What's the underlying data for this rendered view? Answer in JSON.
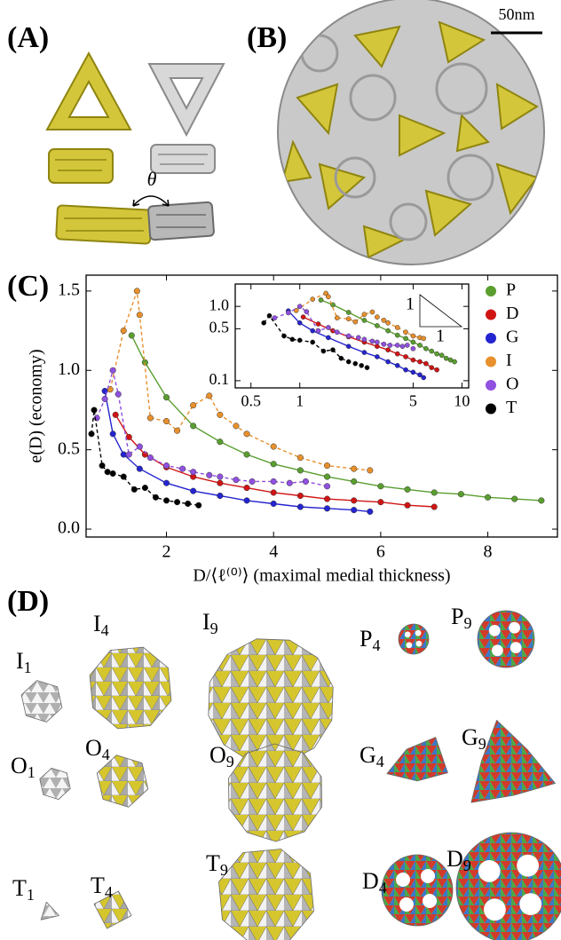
{
  "panel_labels": [
    "(A)",
    "(B)",
    "(C)",
    "(D)"
  ],
  "scale_bar": "50nm",
  "angle_label": "θ",
  "chart_data": [
    {
      "type": "line",
      "xlabel": "D/⟨ℓ⁽⁰⁾⟩ (maximal medial thickness)",
      "ylabel": "e(D) (economy)",
      "xlim": [
        0.5,
        9.3
      ],
      "ylim": [
        -0.05,
        1.6
      ],
      "xticks": [
        2,
        4,
        6,
        8
      ],
      "yticks": [
        {
          "value": 0,
          "label": "0.0"
        },
        0.5,
        {
          "value": 1,
          "label": "1.0"
        },
        1.5
      ],
      "grid": false,
      "legend": "upper right",
      "series": [
        {
          "name": "P",
          "color": "#5a9e2f",
          "linestyle": "solid",
          "x": [
            1.35,
            1.6,
            2,
            2.5,
            3,
            3.5,
            4,
            4.5,
            5,
            5.5,
            6,
            6.5,
            7,
            7.5,
            8,
            8.5,
            9
          ],
          "values": [
            1.22,
            1.05,
            0.83,
            0.65,
            0.55,
            0.47,
            0.41,
            0.37,
            0.33,
            0.3,
            0.27,
            0.25,
            0.23,
            0.22,
            0.2,
            0.19,
            0.18
          ]
        },
        {
          "name": "D",
          "color": "#d01414",
          "linestyle": "solid",
          "x": [
            1.05,
            1.3,
            1.6,
            2,
            2.5,
            3,
            3.5,
            4,
            4.5,
            5,
            5.5,
            6,
            6.5,
            7
          ],
          "values": [
            0.72,
            0.58,
            0.47,
            0.39,
            0.33,
            0.29,
            0.26,
            0.23,
            0.21,
            0.19,
            0.18,
            0.17,
            0.15,
            0.14
          ]
        },
        {
          "name": "G",
          "color": "#2424d0",
          "linestyle": "solid",
          "x": [
            0.85,
            1.0,
            1.2,
            1.5,
            2,
            2.5,
            3,
            3.5,
            4,
            4.5,
            5,
            5.5,
            5.8
          ],
          "values": [
            0.87,
            0.6,
            0.47,
            0.38,
            0.29,
            0.24,
            0.21,
            0.18,
            0.16,
            0.14,
            0.13,
            0.12,
            0.11
          ]
        },
        {
          "name": "I",
          "color": "#e8902c",
          "linestyle": "dashed",
          "x": [
            0.95,
            1.2,
            1.45,
            1.5,
            1.7,
            2,
            2.2,
            2.5,
            2.8,
            3,
            3.3,
            3.5,
            4,
            4.5,
            5,
            5.5,
            5.8
          ],
          "values": [
            0.88,
            1.25,
            1.5,
            1.35,
            0.7,
            0.68,
            0.62,
            0.78,
            0.84,
            0.72,
            0.65,
            0.6,
            0.52,
            0.45,
            0.4,
            0.38,
            0.37
          ]
        },
        {
          "name": "O",
          "color": "#9050e0",
          "linestyle": "dashed",
          "x": [
            0.7,
            0.85,
            1.0,
            1.1,
            1.3,
            1.5,
            1.7,
            2,
            2.3,
            2.5,
            2.8,
            3,
            3.3,
            3.6,
            4,
            4.3,
            4.6,
            5
          ],
          "values": [
            0.7,
            0.82,
            1.0,
            0.85,
            0.47,
            0.52,
            0.45,
            0.4,
            0.38,
            0.36,
            0.34,
            0.33,
            0.31,
            0.3,
            0.3,
            0.29,
            0.3,
            0.27
          ]
        },
        {
          "name": "T",
          "color": "#000000",
          "linestyle": "dashed",
          "x": [
            0.6,
            0.65,
            0.8,
            0.9,
            1.0,
            1.2,
            1.4,
            1.6,
            1.8,
            2,
            2.2,
            2.4,
            2.6
          ],
          "values": [
            0.6,
            0.75,
            0.4,
            0.36,
            0.35,
            0.33,
            0.25,
            0.26,
            0.2,
            0.18,
            0.17,
            0.16,
            0.15
          ]
        }
      ]
    },
    {
      "type": "line",
      "xscale": "log",
      "yscale": "log",
      "xlim": [
        0.4,
        11
      ],
      "ylim": [
        0.08,
        2.0
      ],
      "xticks": [
        0.5,
        1,
        5,
        10
      ],
      "yticks": [
        0.1,
        0.5,
        {
          "value": 1,
          "label": "1.0"
        }
      ],
      "annotations": [
        "1",
        "1"
      ],
      "series": [
        {
          "color": "#5a9e2f",
          "linestyle": "solid",
          "x": [
            1.35,
            1.6,
            2,
            2.5,
            3,
            3.5,
            4,
            4.5,
            5,
            5.5,
            6,
            6.5,
            7,
            7.5,
            8,
            8.5,
            9
          ],
          "values": [
            1.22,
            1.05,
            0.83,
            0.65,
            0.55,
            0.47,
            0.41,
            0.37,
            0.33,
            0.3,
            0.27,
            0.25,
            0.23,
            0.22,
            0.2,
            0.19,
            0.18
          ]
        },
        {
          "color": "#d01414",
          "linestyle": "solid",
          "x": [
            1.05,
            1.3,
            1.6,
            2,
            2.5,
            3,
            3.5,
            4,
            4.5,
            5,
            5.5,
            6,
            6.5,
            7
          ],
          "values": [
            0.72,
            0.58,
            0.47,
            0.39,
            0.33,
            0.29,
            0.26,
            0.23,
            0.21,
            0.19,
            0.18,
            0.17,
            0.15,
            0.14
          ]
        },
        {
          "color": "#2424d0",
          "linestyle": "solid",
          "x": [
            0.85,
            1.0,
            1.2,
            1.5,
            2,
            2.5,
            3,
            3.5,
            4,
            4.5,
            5,
            5.5,
            5.8
          ],
          "values": [
            0.87,
            0.6,
            0.47,
            0.38,
            0.29,
            0.24,
            0.21,
            0.18,
            0.16,
            0.14,
            0.13,
            0.12,
            0.11
          ]
        },
        {
          "color": "#e8902c",
          "linestyle": "dashed",
          "x": [
            0.95,
            1.2,
            1.45,
            1.5,
            1.7,
            2,
            2.2,
            2.5,
            2.8,
            3,
            3.3,
            3.5,
            4,
            4.5,
            5,
            5.5,
            5.8
          ],
          "values": [
            0.88,
            1.25,
            1.5,
            1.35,
            0.7,
            0.68,
            0.62,
            0.78,
            0.84,
            0.72,
            0.65,
            0.6,
            0.52,
            0.45,
            0.4,
            0.38,
            0.37
          ]
        },
        {
          "color": "#9050e0",
          "linestyle": "dashed",
          "x": [
            0.7,
            0.85,
            1.0,
            1.1,
            1.3,
            1.5,
            1.7,
            2,
            2.3,
            2.5,
            2.8,
            3,
            3.3,
            3.6,
            4,
            4.3,
            4.6,
            5
          ],
          "values": [
            0.7,
            0.82,
            1.0,
            0.85,
            0.47,
            0.52,
            0.45,
            0.4,
            0.38,
            0.36,
            0.34,
            0.33,
            0.31,
            0.3,
            0.3,
            0.29,
            0.3,
            0.27
          ]
        },
        {
          "color": "#000000",
          "linestyle": "dashed",
          "x": [
            0.6,
            0.65,
            0.8,
            0.9,
            1.0,
            1.2,
            1.4,
            1.6,
            1.8,
            2,
            2.2,
            2.4,
            2.6
          ],
          "values": [
            0.6,
            0.75,
            0.4,
            0.36,
            0.35,
            0.33,
            0.25,
            0.26,
            0.2,
            0.18,
            0.17,
            0.16,
            0.15
          ]
        }
      ]
    }
  ],
  "shapes_d": [
    {
      "letter": "I",
      "sub": "1"
    },
    {
      "letter": "I",
      "sub": "4"
    },
    {
      "letter": "I",
      "sub": "9"
    },
    {
      "letter": "O",
      "sub": "1"
    },
    {
      "letter": "O",
      "sub": "4"
    },
    {
      "letter": "O",
      "sub": "9"
    },
    {
      "letter": "T",
      "sub": "1"
    },
    {
      "letter": "T",
      "sub": "4"
    },
    {
      "letter": "T",
      "sub": "9"
    },
    {
      "letter": "P",
      "sub": "4"
    },
    {
      "letter": "P",
      "sub": "9"
    },
    {
      "letter": "G",
      "sub": "4"
    },
    {
      "letter": "G",
      "sub": "9"
    },
    {
      "letter": "D",
      "sub": "4"
    },
    {
      "letter": "D",
      "sub": "9"
    }
  ]
}
